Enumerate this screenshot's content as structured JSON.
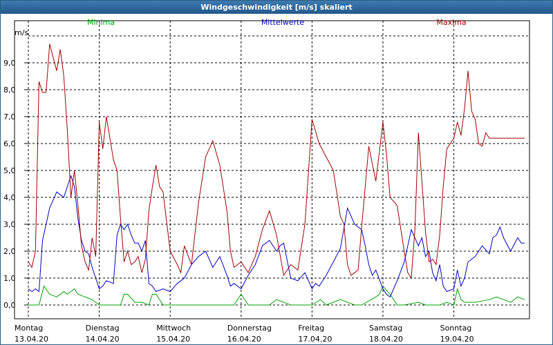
{
  "window": {
    "title": "Windgeschwindigkeit [m/s] skaliert"
  },
  "colors": {
    "minima": "#00a000",
    "mittel": "#0000c0",
    "maxima": "#a00000",
    "grid": "#000000",
    "titlebar": "#2f6aa0"
  },
  "chart_data": {
    "type": "line",
    "title": "Windgeschwindigkeit [m/s] skaliert",
    "ylabel": "m/s",
    "xlabel": "",
    "ylim": [
      0,
      10
    ],
    "yticks": [
      "0,0",
      "1,0",
      "2,0",
      "3,0",
      "4,0",
      "5,0",
      "6,0",
      "7,0",
      "8,0",
      "9,0"
    ],
    "xlim": [
      0,
      7.0
    ],
    "xticks": [
      {
        "day": "Montag",
        "date": "13.04.20",
        "x": 0
      },
      {
        "day": "Dienstag",
        "date": "14.04.20",
        "x": 1
      },
      {
        "day": "Mittwoch",
        "date": "15.04.20",
        "x": 2
      },
      {
        "day": "Donnerstag",
        "date": "16.04.20",
        "x": 3
      },
      {
        "day": "Freitag",
        "date": "17.04.20",
        "x": 4
      },
      {
        "day": "Samstag",
        "date": "18.04.20",
        "x": 5
      },
      {
        "day": "Sonntag",
        "date": "19.04.20",
        "x": 6
      }
    ],
    "grid": true,
    "series": [
      {
        "name": "Minima",
        "x": [
          0,
          0.15,
          0.22,
          0.3,
          0.4,
          0.5,
          0.55,
          0.65,
          0.7,
          0.8,
          0.9,
          1.0,
          1.3,
          1.35,
          1.4,
          1.5,
          1.6,
          1.7,
          1.75,
          1.8,
          1.9,
          2.0,
          2.9,
          3.0,
          3.1,
          3.3,
          3.4,
          3.5,
          3.7,
          4.0,
          4.12,
          4.2,
          4.4,
          4.6,
          4.7,
          4.9,
          4.95,
          5.0,
          5.1,
          5.2,
          5.3,
          5.5,
          5.6,
          5.8,
          5.9,
          6.0,
          6.05,
          6.1,
          6.15,
          6.3,
          6.5,
          6.6,
          6.7,
          6.8,
          6.9,
          7.0
        ],
        "y": [
          0,
          0,
          0.7,
          0.4,
          0.3,
          0.5,
          0.4,
          0.6,
          0.4,
          0.3,
          0.2,
          0,
          0,
          0.4,
          0.4,
          0.1,
          0.1,
          0,
          0.4,
          0.4,
          0,
          0,
          0,
          0.4,
          0,
          0,
          0,
          0.2,
          0,
          0,
          0.2,
          0,
          0.2,
          0,
          0,
          0.3,
          0.4,
          0.7,
          0.4,
          0,
          0,
          0.1,
          0,
          0,
          0.1,
          0,
          0.6,
          0.2,
          0.1,
          0.1,
          0.2,
          0.3,
          0.2,
          0.1,
          0.3,
          0.2
        ]
      },
      {
        "name": "Mittelwerte",
        "x": [
          0,
          0.05,
          0.1,
          0.15,
          0.2,
          0.25,
          0.3,
          0.35,
          0.4,
          0.5,
          0.55,
          0.6,
          0.65,
          0.7,
          0.75,
          0.8,
          0.85,
          0.9,
          1.0,
          1.05,
          1.1,
          1.2,
          1.25,
          1.3,
          1.35,
          1.4,
          1.45,
          1.5,
          1.55,
          1.6,
          1.65,
          1.7,
          1.75,
          1.8,
          1.9,
          2.0,
          2.1,
          2.2,
          2.3,
          2.4,
          2.5,
          2.6,
          2.7,
          2.8,
          2.85,
          2.9,
          3.0,
          3.1,
          3.2,
          3.3,
          3.4,
          3.5,
          3.55,
          3.6,
          3.7,
          3.8,
          3.9,
          4.0,
          4.05,
          4.1,
          4.2,
          4.3,
          4.4,
          4.5,
          4.6,
          4.7,
          4.75,
          4.8,
          4.85,
          4.9,
          5.0,
          5.05,
          5.1,
          5.2,
          5.3,
          5.4,
          5.5,
          5.55,
          5.6,
          5.65,
          5.7,
          5.75,
          5.8,
          5.85,
          5.9,
          6.0,
          6.05,
          6.1,
          6.15,
          6.2,
          6.3,
          6.4,
          6.5,
          6.55,
          6.6,
          6.65,
          6.7,
          6.8,
          6.9,
          6.95,
          7.0
        ],
        "y": [
          0.6,
          0.5,
          0.6,
          0.5,
          2.4,
          3.0,
          3.6,
          3.9,
          4.2,
          4.0,
          4.4,
          4.8,
          4.4,
          3.2,
          2.4,
          2.0,
          1.9,
          1.4,
          0.6,
          0.7,
          0.9,
          0.8,
          2.6,
          3.0,
          2.8,
          3.0,
          2.6,
          2.3,
          2.3,
          2.0,
          2.4,
          0.8,
          0.7,
          0.5,
          0.6,
          0.5,
          0.8,
          1.0,
          1.5,
          1.8,
          2.0,
          1.4,
          1.8,
          1.1,
          0.7,
          0.8,
          0.6,
          1.1,
          1.5,
          2.2,
          2.4,
          2.0,
          2.2,
          2.3,
          1.0,
          0.9,
          1.2,
          0.6,
          0.8,
          0.7,
          1.1,
          1.6,
          2.1,
          3.6,
          3.0,
          2.8,
          2.2,
          1.5,
          1.1,
          1.3,
          0.6,
          0.4,
          0.3,
          0.9,
          1.6,
          2.8,
          2.2,
          2.5,
          1.8,
          2.0,
          1.2,
          0.9,
          1.5,
          0.7,
          0.5,
          0.6,
          1.3,
          0.7,
          1.0,
          1.6,
          1.8,
          2.2,
          1.9,
          2.5,
          2.6,
          2.9,
          2.5,
          2.0,
          2.5,
          2.3,
          2.3
        ]
      },
      {
        "name": "Maxima",
        "x": [
          0,
          0.05,
          0.1,
          0.15,
          0.2,
          0.25,
          0.3,
          0.4,
          0.45,
          0.5,
          0.55,
          0.6,
          0.65,
          0.7,
          0.75,
          0.8,
          0.85,
          0.9,
          0.95,
          1.0,
          1.05,
          1.1,
          1.2,
          1.25,
          1.3,
          1.35,
          1.4,
          1.45,
          1.5,
          1.55,
          1.6,
          1.65,
          1.7,
          1.75,
          1.8,
          1.85,
          1.9,
          2.0,
          2.1,
          2.15,
          2.2,
          2.3,
          2.4,
          2.5,
          2.6,
          2.7,
          2.8,
          2.85,
          2.9,
          3.0,
          3.1,
          3.2,
          3.3,
          3.4,
          3.5,
          3.6,
          3.7,
          3.8,
          3.9,
          4.0,
          4.1,
          4.2,
          4.3,
          4.4,
          4.45,
          4.5,
          4.55,
          4.6,
          4.65,
          4.7,
          4.8,
          4.9,
          5.0,
          5.05,
          5.1,
          5.2,
          5.3,
          5.35,
          5.4,
          5.45,
          5.5,
          5.6,
          5.65,
          5.7,
          5.75,
          5.8,
          5.85,
          5.9,
          6.0,
          6.05,
          6.1,
          6.15,
          6.2,
          6.25,
          6.3,
          6.35,
          6.4,
          6.45,
          6.5,
          6.55,
          6.6,
          6.65,
          6.7,
          6.8,
          6.85,
          6.9,
          6.95,
          7.0
        ],
        "y": [
          1.6,
          1.4,
          2.0,
          8.3,
          7.9,
          7.9,
          9.7,
          8.7,
          9.5,
          8.5,
          6.5,
          4.0,
          5.0,
          3.7,
          2.2,
          1.6,
          1.3,
          2.5,
          1.8,
          6.8,
          5.8,
          7.0,
          5.4,
          5.0,
          3.2,
          1.6,
          2.0,
          1.5,
          1.6,
          1.8,
          1.2,
          1.7,
          3.5,
          4.4,
          5.2,
          4.4,
          4.2,
          2.0,
          1.5,
          1.2,
          2.2,
          1.5,
          3.8,
          5.5,
          6.1,
          5.2,
          3.5,
          2.0,
          1.4,
          1.6,
          1.2,
          1.8,
          2.8,
          3.5,
          2.6,
          1.1,
          1.5,
          1.3,
          3.0,
          6.9,
          6.0,
          5.5,
          5.0,
          3.3,
          3.0,
          1.5,
          1.1,
          1.2,
          1.3,
          2.9,
          5.9,
          4.6,
          6.8,
          5.6,
          4.0,
          3.7,
          2.0,
          1.2,
          1.0,
          2.8,
          6.4,
          2.7,
          1.6,
          1.7,
          1.5,
          2.6,
          4.4,
          5.8,
          6.2,
          6.8,
          6.3,
          7.3,
          8.7,
          7.2,
          6.9,
          6.0,
          5.9,
          6.4,
          6.2,
          6.2,
          6.2,
          6.2,
          6.2,
          6.2,
          6.2,
          6.2,
          6.2,
          6.2
        ]
      }
    ]
  }
}
